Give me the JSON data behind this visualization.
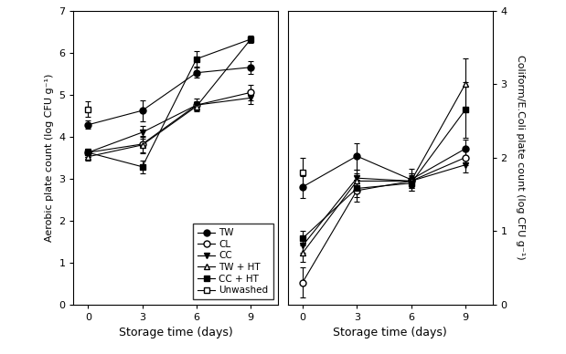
{
  "days": [
    0,
    3,
    6,
    9
  ],
  "left_ylabel": "Aerobic plate count (log CFU g⁻¹)",
  "right_ylabel": "Coliform/E.Coli plate count (log CFU g⁻¹)",
  "xlabel": "Storage time (days)",
  "left_ylim": [
    0,
    7
  ],
  "right_ylim": [
    0,
    4
  ],
  "left_yticks": [
    0,
    1,
    2,
    3,
    4,
    5,
    6,
    7
  ],
  "right_yticks": [
    0,
    1,
    2,
    3,
    4
  ],
  "xticks": [
    0,
    3,
    6,
    9
  ],
  "left_series": {
    "TW": {
      "y": [
        4.28,
        4.62,
        5.52,
        5.65
      ],
      "yerr": [
        0.1,
        0.25,
        0.12,
        0.15
      ],
      "marker": "o",
      "fillstyle": "full"
    },
    "CL": {
      "y": [
        3.62,
        3.82,
        4.75,
        5.05
      ],
      "yerr": [
        0.1,
        0.2,
        0.15,
        0.18
      ],
      "marker": "o",
      "fillstyle": "none"
    },
    "CC": {
      "y": [
        3.62,
        4.1,
        4.75,
        4.92
      ],
      "yerr": [
        0.1,
        0.15,
        0.1,
        0.15
      ],
      "marker": "v",
      "fillstyle": "full"
    },
    "TW + HT": {
      "y": [
        3.52,
        3.8,
        4.72,
        6.32
      ],
      "yerr": [
        0.1,
        0.2,
        0.1,
        0.08
      ],
      "marker": "^",
      "fillstyle": "none"
    },
    "CC + HT": {
      "y": [
        3.62,
        3.28,
        5.85,
        6.32
      ],
      "yerr": [
        0.1,
        0.15,
        0.18,
        0.05
      ],
      "marker": "s",
      "fillstyle": "full"
    },
    "Unwashed": {
      "y": [
        4.65,
        null,
        null,
        null
      ],
      "yerr": [
        0.18,
        0,
        0,
        0
      ],
      "marker": "s",
      "fillstyle": "none"
    }
  },
  "right_series": {
    "TW": {
      "y": [
        1.6,
        2.02,
        1.7,
        2.12
      ],
      "yerr": [
        0.15,
        0.18,
        0.15,
        0.12
      ],
      "marker": "o",
      "fillstyle": "full"
    },
    "CL": {
      "y": [
        0.3,
        1.55,
        1.68,
        2.0
      ],
      "yerr": [
        0.2,
        0.15,
        0.1,
        0.1
      ],
      "marker": "o",
      "fillstyle": "none"
    },
    "CC": {
      "y": [
        0.8,
        1.72,
        1.68,
        1.9
      ],
      "yerr": [
        0.1,
        0.12,
        0.08,
        0.1
      ],
      "marker": "v",
      "fillstyle": "full"
    },
    "TW + HT": {
      "y": [
        0.7,
        1.68,
        1.68,
        3.0
      ],
      "yerr": [
        0.12,
        0.1,
        0.1,
        0.35
      ],
      "marker": "^",
      "fillstyle": "none"
    },
    "CC + HT": {
      "y": [
        0.9,
        1.58,
        1.65,
        2.65
      ],
      "yerr": [
        0.1,
        0.12,
        0.1,
        0.38
      ],
      "marker": "s",
      "fillstyle": "full"
    },
    "Unwashed": {
      "y": [
        1.8,
        null,
        null,
        null
      ],
      "yerr": [
        0.2,
        0,
        0,
        0
      ],
      "marker": "s",
      "fillstyle": "none"
    }
  },
  "legend_labels": [
    "TW",
    "CL",
    "CC",
    "TW + HT",
    "CC + HT",
    "Unwashed"
  ],
  "figsize": [
    6.19,
    3.88
  ],
  "dpi": 100
}
